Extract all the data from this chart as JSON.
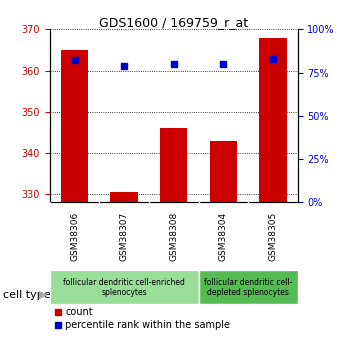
{
  "title": "GDS1600 / 169759_r_at",
  "samples": [
    "GSM38306",
    "GSM38307",
    "GSM38308",
    "GSM38304",
    "GSM38305"
  ],
  "counts": [
    365,
    330.5,
    346,
    343,
    368
  ],
  "percentiles": [
    82,
    79,
    80,
    80,
    83
  ],
  "ylim_left": [
    328,
    370
  ],
  "ylim_right": [
    0,
    100
  ],
  "yticks_left": [
    330,
    340,
    350,
    360,
    370
  ],
  "yticks_right": [
    0,
    25,
    50,
    75,
    100
  ],
  "bar_color": "#cc0000",
  "dot_color": "#0000cc",
  "bar_bottom": 328,
  "groups": [
    {
      "label": "follicular dendritic cell-enriched\nsplenocytes",
      "samples_idx": [
        0,
        1,
        2
      ],
      "color": "#99dd99"
    },
    {
      "label": "follicular dendritic cell-\ndepleted splenocytes",
      "samples_idx": [
        3,
        4
      ],
      "color": "#55bb55"
    }
  ],
  "cell_type_label": "cell type",
  "legend_count_label": "count",
  "legend_percentile_label": "percentile rank within the sample",
  "background_color": "#ffffff",
  "plot_bg": "#ffffff",
  "tick_color_left": "#cc0000",
  "tick_color_right": "#0000cc",
  "sample_label_bg": "#cccccc",
  "figsize": [
    3.43,
    3.45
  ],
  "dpi": 100
}
